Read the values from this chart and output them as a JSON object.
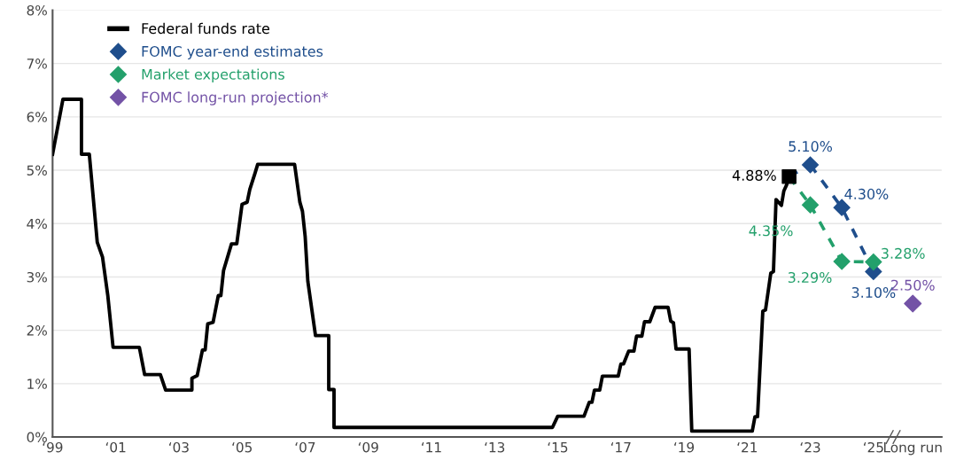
{
  "chart_data": {
    "type": "line",
    "xlim": [
      "1999",
      "2027-03"
    ],
    "ylim": [
      0,
      8
    ],
    "xticks": [
      {
        "value": "1999",
        "label": "‘99"
      },
      {
        "value": "2001",
        "label": "‘01"
      },
      {
        "value": "2003",
        "label": "‘03"
      },
      {
        "value": "2005",
        "label": "‘05"
      },
      {
        "value": "2007",
        "label": "‘07"
      },
      {
        "value": "2009",
        "label": "‘09"
      },
      {
        "value": "2011",
        "label": "‘11"
      },
      {
        "value": "2013",
        "label": "‘13"
      },
      {
        "value": "2015",
        "label": "‘15"
      },
      {
        "value": "2017",
        "label": "‘17"
      },
      {
        "value": "2019",
        "label": "‘19"
      },
      {
        "value": "2021",
        "label": "‘21"
      },
      {
        "value": "2023",
        "label": "‘23"
      },
      {
        "value": "2025",
        "label": "‘25"
      },
      {
        "value": "2026-04",
        "label": "Long run"
      }
    ],
    "yticks": [
      {
        "value": 0,
        "label": "0%"
      },
      {
        "value": 1,
        "label": "1%"
      },
      {
        "value": 2,
        "label": "2%"
      },
      {
        "value": 3,
        "label": "3%"
      },
      {
        "value": 4,
        "label": "4%"
      },
      {
        "value": 5,
        "label": "5%"
      },
      {
        "value": 6,
        "label": "6%"
      },
      {
        "value": 7,
        "label": "7%"
      },
      {
        "value": 8,
        "label": "8%"
      }
    ],
    "grid": "y",
    "legend": "top left",
    "series": [
      {
        "name": "Federal funds rate",
        "color": "#000000",
        "line_style": "solid",
        "marker": "none",
        "x": [
          "1999-01",
          "1999-05",
          "1999-12",
          "1999-12",
          "2000-03",
          "2000-06",
          "2000-08",
          "2000-10",
          "2000-12",
          "2001-10",
          "2001-12",
          "2002-06",
          "2002-08",
          "2003-06",
          "2003-06",
          "2003-08",
          "2003-10",
          "2003-11",
          "2003-12",
          "2004-02",
          "2004-04",
          "2004-05",
          "2004-06",
          "2004-09",
          "2004-11",
          "2005-01",
          "2005-03",
          "2005-04",
          "2005-06",
          "2005-07",
          "2006-09",
          "2006-11",
          "2006-12",
          "2007-01",
          "2007-02",
          "2007-05",
          "2007-10",
          "2007-10",
          "2007-12",
          "2007-12",
          "2014-11",
          "2015-01",
          "2015-11",
          "2016-01",
          "2016-02",
          "2016-03",
          "2016-05",
          "2016-06",
          "2016-12",
          "2017-01",
          "2017-02",
          "2017-04",
          "2017-06",
          "2017-07",
          "2017-09",
          "2017-10",
          "2017-12",
          "2018-02",
          "2018-07",
          "2018-08",
          "2018-09",
          "2018-10",
          "2019-03",
          "2019-04",
          "2021-03",
          "2021-04",
          "2021-05",
          "2021-07",
          "2021-08",
          "2021-10",
          "2021-11",
          "2021-12",
          "2022-02",
          "2022-03",
          "2022-04",
          "2022-05"
        ],
        "values": [
          5.3,
          6.33,
          6.33,
          5.3,
          5.3,
          3.65,
          3.37,
          2.65,
          1.68,
          1.68,
          1.17,
          1.17,
          0.88,
          0.88,
          1.1,
          1.15,
          1.63,
          1.63,
          2.12,
          2.15,
          2.65,
          2.65,
          3.12,
          3.62,
          3.62,
          4.36,
          4.4,
          4.64,
          4.95,
          5.11,
          5.11,
          4.4,
          4.23,
          3.76,
          2.92,
          1.9,
          1.9,
          0.89,
          0.89,
          0.18,
          0.18,
          0.39,
          0.39,
          0.65,
          0.65,
          0.88,
          0.88,
          1.14,
          1.14,
          1.37,
          1.37,
          1.61,
          1.61,
          1.89,
          1.89,
          2.16,
          2.16,
          2.43,
          2.43,
          2.17,
          2.14,
          1.65,
          1.65,
          0.11,
          0.11,
          0.38,
          0.38,
          2.36,
          2.38,
          3.07,
          3.1,
          4.45,
          4.34,
          4.61,
          4.72,
          4.88
        ]
      },
      {
        "name": "FOMC year-end estimates",
        "color": "#1f4e8c",
        "line_style": "dashed",
        "marker": "diamond",
        "x": [
          "2023",
          "2024",
          "2025"
        ],
        "values": [
          5.1,
          4.3,
          3.1
        ],
        "value_labels": [
          "5.10%",
          "4.30%",
          "3.10%"
        ]
      },
      {
        "name": "Market expectations",
        "color": "#23a06b",
        "line_style": "dashed",
        "marker": "diamond",
        "x": [
          "2023",
          "2024",
          "2025"
        ],
        "values": [
          4.35,
          3.29,
          3.28
        ],
        "value_labels": [
          "4.35%",
          "3.29%",
          "3.28%"
        ]
      },
      {
        "name": "FOMC long-run projection*",
        "type": "scatter",
        "color": "#7352a6",
        "marker": "diamond",
        "x": [
          "2026-04"
        ],
        "values": [
          2.5
        ],
        "value_labels": [
          "2.50%"
        ]
      }
    ],
    "annotations": [
      {
        "text": "4.88%",
        "x": "2022-05",
        "y": 4.88
      }
    ]
  }
}
